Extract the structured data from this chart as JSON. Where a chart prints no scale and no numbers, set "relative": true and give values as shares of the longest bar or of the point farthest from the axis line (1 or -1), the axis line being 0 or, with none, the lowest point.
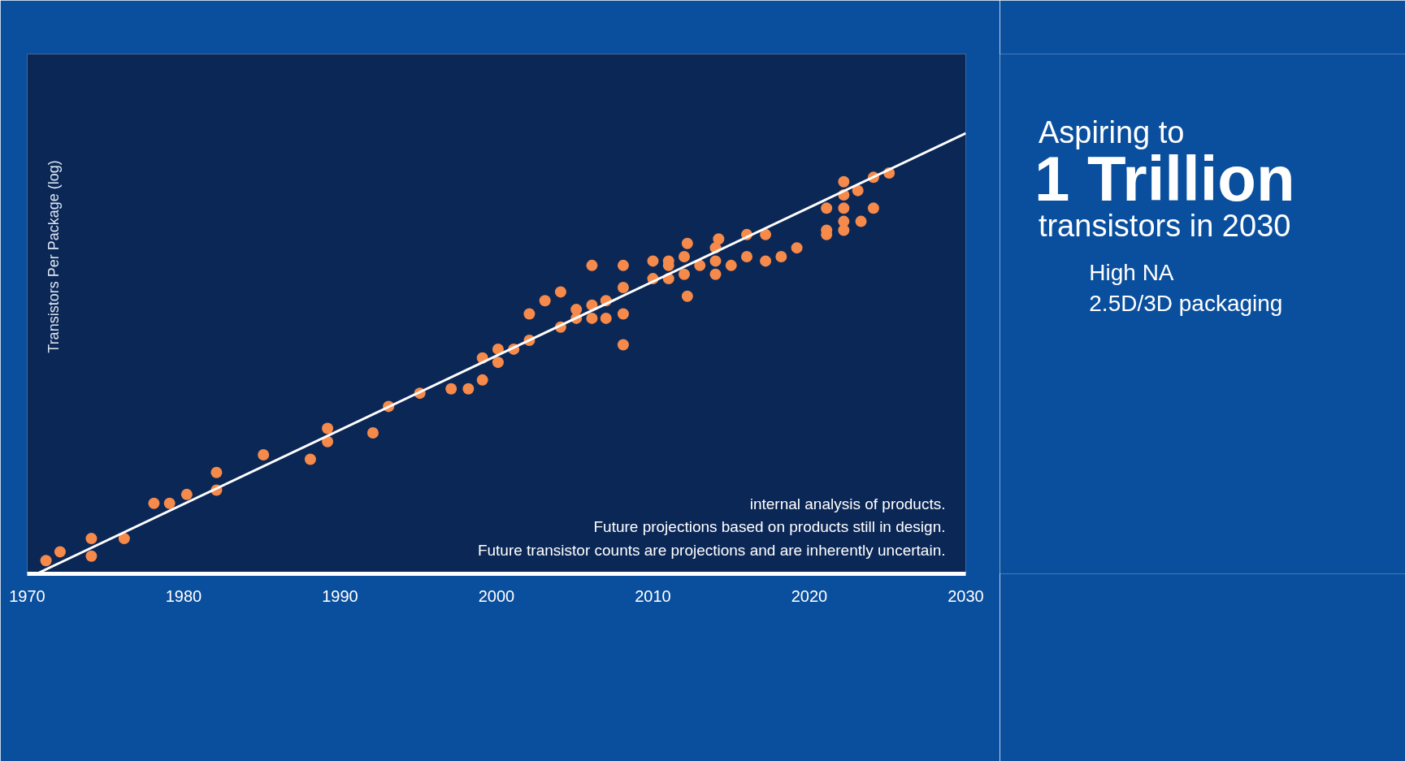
{
  "chart_data": {
    "type": "scatter",
    "relative": true,
    "ylabel": "Transistors Per Package (log)",
    "xlim": [
      1970,
      2030
    ],
    "xticks": [
      1970,
      1980,
      1990,
      2000,
      2010,
      2020,
      2030
    ],
    "grid": false,
    "marker": "circle",
    "annotations": [
      "internal analysis of products.",
      "Future projections based on products still in design.",
      "Future transistor counts are projections and are inherently uncertain.",
      "Aspiring to",
      "1 Trillion",
      "transistors in 2030",
      "High NA",
      "2.5D/3D packaging"
    ],
    "series": [
      {
        "color": "#f58a4b",
        "x": [
          1971.2,
          1972.1,
          1974.1,
          1974.1,
          1976.2,
          1978.1,
          1979.1,
          1980.2,
          1982.1,
          1982.1,
          1985.1,
          1988.1,
          1989.2,
          1989.2,
          1992.1,
          1993.1,
          1995.1,
          1997.1,
          1998.2,
          1999.1,
          1999.1,
          2000.1,
          2000.1,
          2001.1,
          2002.1,
          2002.1,
          2003.1,
          2004.1,
          2004.1,
          2005.1,
          2005.1,
          2006.1,
          2006.1,
          2006.1,
          2007.0,
          2007.0,
          2008.1,
          2008.1,
          2008.1,
          2008.1,
          2010.0,
          2010.0,
          2011.0,
          2011.0,
          2011.0,
          2012.0,
          2012.0,
          2012.2,
          2012.2,
          2013.0,
          2014.0,
          2014.0,
          2014.0,
          2014.2,
          2015.0,
          2016.0,
          2016.0,
          2017.2,
          2017.2,
          2018.2,
          2019.2,
          2021.1,
          2021.1,
          2021.1,
          2022.2,
          2022.2,
          2022.2,
          2022.2,
          2022.2,
          2023.1,
          2023.3,
          2024.1,
          2024.1,
          2025.1
        ],
        "values": [
          0.03,
          0.05,
          0.08,
          0.04,
          0.08,
          0.16,
          0.16,
          0.18,
          0.23,
          0.19,
          0.27,
          0.26,
          0.33,
          0.3,
          0.32,
          0.38,
          0.41,
          0.42,
          0.42,
          0.44,
          0.49,
          0.48,
          0.51,
          0.51,
          0.53,
          0.59,
          0.62,
          0.56,
          0.64,
          0.58,
          0.6,
          0.61,
          0.58,
          0.7,
          0.58,
          0.62,
          0.59,
          0.65,
          0.7,
          0.52,
          0.67,
          0.71,
          0.7,
          0.71,
          0.67,
          0.68,
          0.72,
          0.75,
          0.63,
          0.7,
          0.68,
          0.71,
          0.74,
          0.76,
          0.7,
          0.72,
          0.77,
          0.77,
          0.71,
          0.72,
          0.74,
          0.83,
          0.78,
          0.77,
          0.89,
          0.86,
          0.83,
          0.8,
          0.78,
          0.87,
          0.8,
          0.9,
          0.83,
          0.91
        ]
      },
      {
        "type": "line",
        "marker": "none",
        "color": "#ffffff",
        "x": [
          1970.6,
          2030
        ],
        "values": [
          0,
          1
        ]
      }
    ]
  }
}
